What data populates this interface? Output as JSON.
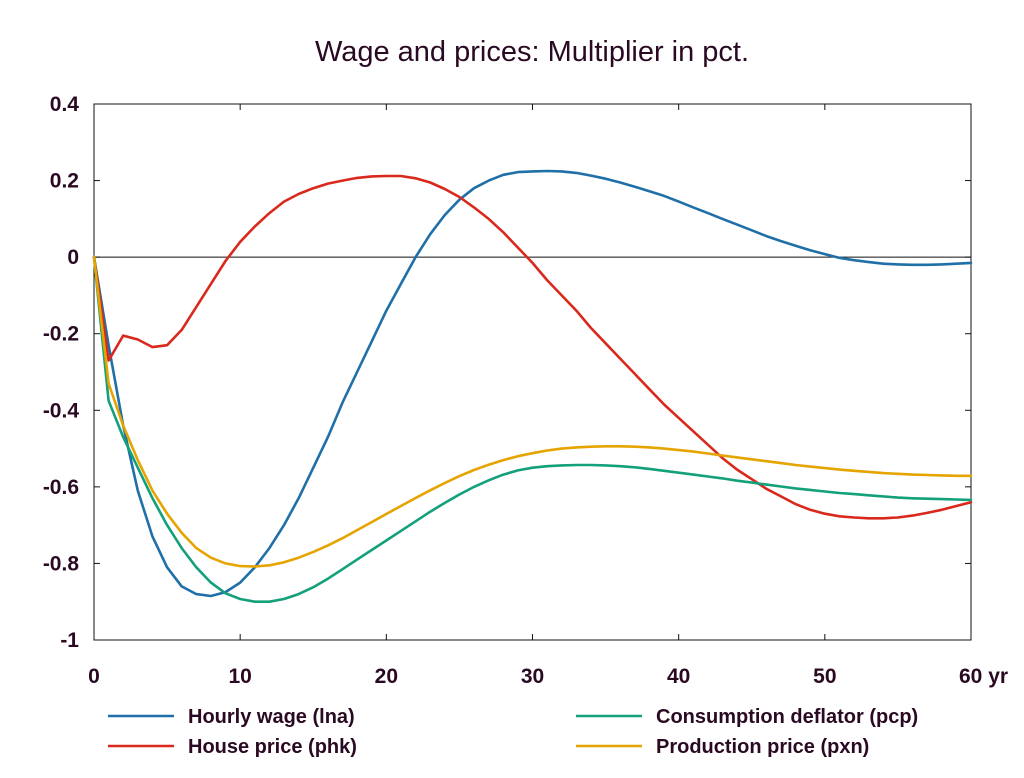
{
  "chart_data": {
    "type": "line",
    "title": "Wage and prices: Multiplier in pct.",
    "xlabel": "",
    "ylabel": "",
    "xlim": [
      0,
      60
    ],
    "ylim": [
      -1,
      0.4
    ],
    "x_ticks": [
      0,
      10,
      20,
      30,
      40,
      50,
      60
    ],
    "x_tick_labels": [
      "0",
      "10",
      "20",
      "30",
      "40",
      "50",
      "60 yr"
    ],
    "y_ticks": [
      0.4,
      0.2,
      0,
      -0.2,
      -0.4,
      -0.6,
      -0.8,
      -1
    ],
    "y_tick_labels": [
      "0.4",
      "0.2",
      "0",
      "-0.2",
      "-0.4",
      "-0.6",
      "-0.8",
      "-1"
    ],
    "grid": false,
    "zero_line": true,
    "legend_position": "bottom",
    "series": [
      {
        "name": "Hourly wage (lna)",
        "color": "#1f6fa8",
        "x": [
          0,
          1,
          2,
          3,
          4,
          5,
          6,
          7,
          8,
          9,
          10,
          11,
          12,
          13,
          14,
          15,
          16,
          17,
          18,
          19,
          20,
          21,
          22,
          23,
          24,
          25,
          26,
          27,
          28,
          29,
          30,
          31,
          32,
          33,
          34,
          35,
          36,
          37,
          38,
          39,
          40,
          41,
          42,
          43,
          44,
          45,
          46,
          47,
          48,
          49,
          50,
          51,
          52,
          53,
          54,
          55,
          56,
          57,
          58,
          59,
          60
        ],
        "values": [
          0,
          -0.23,
          -0.44,
          -0.61,
          -0.73,
          -0.81,
          -0.86,
          -0.88,
          -0.885,
          -0.875,
          -0.85,
          -0.81,
          -0.76,
          -0.7,
          -0.63,
          -0.55,
          -0.47,
          -0.38,
          -0.3,
          -0.22,
          -0.14,
          -0.07,
          0.0,
          0.06,
          0.11,
          0.15,
          0.18,
          0.2,
          0.215,
          0.222,
          0.224,
          0.225,
          0.224,
          0.22,
          0.213,
          0.205,
          0.195,
          0.184,
          0.172,
          0.16,
          0.145,
          0.13,
          0.115,
          0.1,
          0.085,
          0.07,
          0.055,
          0.042,
          0.03,
          0.018,
          0.008,
          -0.002,
          -0.008,
          -0.013,
          -0.017,
          -0.019,
          -0.02,
          -0.02,
          -0.019,
          -0.017,
          -0.015
        ]
      },
      {
        "name": "House price (phk)",
        "color": "#d9291c",
        "x": [
          0,
          1,
          2,
          3,
          4,
          5,
          6,
          7,
          8,
          9,
          10,
          11,
          12,
          13,
          14,
          15,
          16,
          17,
          18,
          19,
          20,
          21,
          22,
          23,
          24,
          25,
          26,
          27,
          28,
          29,
          30,
          31,
          32,
          33,
          34,
          35,
          36,
          37,
          38,
          39,
          40,
          41,
          42,
          43,
          44,
          45,
          46,
          47,
          48,
          49,
          50,
          51,
          52,
          53,
          54,
          55,
          56,
          57,
          58,
          59,
          60
        ],
        "values": [
          0,
          -0.27,
          -0.205,
          -0.215,
          -0.235,
          -0.23,
          -0.19,
          -0.13,
          -0.07,
          -0.01,
          0.04,
          0.08,
          0.115,
          0.145,
          0.165,
          0.18,
          0.192,
          0.2,
          0.207,
          0.211,
          0.212,
          0.212,
          0.206,
          0.195,
          0.178,
          0.157,
          0.13,
          0.1,
          0.065,
          0.025,
          -0.015,
          -0.06,
          -0.1,
          -0.14,
          -0.185,
          -0.225,
          -0.265,
          -0.305,
          -0.345,
          -0.385,
          -0.42,
          -0.455,
          -0.49,
          -0.525,
          -0.555,
          -0.58,
          -0.605,
          -0.625,
          -0.645,
          -0.66,
          -0.67,
          -0.677,
          -0.68,
          -0.682,
          -0.682,
          -0.68,
          -0.675,
          -0.668,
          -0.66,
          -0.65,
          -0.64
        ]
      },
      {
        "name": "Consumption deflator (pcp)",
        "color": "#13a07b",
        "x": [
          0,
          1,
          2,
          3,
          4,
          5,
          6,
          7,
          8,
          9,
          10,
          11,
          12,
          13,
          14,
          15,
          16,
          17,
          18,
          19,
          20,
          21,
          22,
          23,
          24,
          25,
          26,
          27,
          28,
          29,
          30,
          31,
          32,
          33,
          34,
          35,
          36,
          37,
          38,
          39,
          40,
          41,
          42,
          43,
          44,
          45,
          46,
          47,
          48,
          49,
          50,
          51,
          52,
          53,
          54,
          55,
          56,
          57,
          58,
          59,
          60
        ],
        "values": [
          0,
          -0.375,
          -0.47,
          -0.55,
          -0.63,
          -0.7,
          -0.76,
          -0.81,
          -0.85,
          -0.878,
          -0.893,
          -0.9,
          -0.9,
          -0.893,
          -0.88,
          -0.862,
          -0.84,
          -0.815,
          -0.79,
          -0.765,
          -0.74,
          -0.715,
          -0.69,
          -0.665,
          -0.642,
          -0.62,
          -0.6,
          -0.583,
          -0.568,
          -0.557,
          -0.55,
          -0.546,
          -0.544,
          -0.543,
          -0.543,
          -0.544,
          -0.546,
          -0.549,
          -0.553,
          -0.558,
          -0.563,
          -0.568,
          -0.573,
          -0.578,
          -0.584,
          -0.589,
          -0.594,
          -0.599,
          -0.604,
          -0.608,
          -0.612,
          -0.616,
          -0.619,
          -0.622,
          -0.625,
          -0.628,
          -0.63,
          -0.631,
          -0.632,
          -0.633,
          -0.634
        ]
      },
      {
        "name": "Production price (pxn)",
        "color": "#e5a400",
        "x": [
          0,
          1,
          2,
          3,
          4,
          5,
          6,
          7,
          8,
          9,
          10,
          11,
          12,
          13,
          14,
          15,
          16,
          17,
          18,
          19,
          20,
          21,
          22,
          23,
          24,
          25,
          26,
          27,
          28,
          29,
          30,
          31,
          32,
          33,
          34,
          35,
          36,
          37,
          38,
          39,
          40,
          41,
          42,
          43,
          44,
          45,
          46,
          47,
          48,
          49,
          50,
          51,
          52,
          53,
          54,
          55,
          56,
          57,
          58,
          59,
          60
        ],
        "values": [
          0,
          -0.33,
          -0.44,
          -0.53,
          -0.61,
          -0.67,
          -0.72,
          -0.76,
          -0.785,
          -0.8,
          -0.807,
          -0.808,
          -0.805,
          -0.797,
          -0.785,
          -0.77,
          -0.753,
          -0.734,
          -0.713,
          -0.692,
          -0.671,
          -0.65,
          -0.629,
          -0.609,
          -0.59,
          -0.572,
          -0.556,
          -0.542,
          -0.53,
          -0.52,
          -0.512,
          -0.505,
          -0.5,
          -0.497,
          -0.495,
          -0.494,
          -0.494,
          -0.495,
          -0.497,
          -0.5,
          -0.504,
          -0.508,
          -0.513,
          -0.518,
          -0.523,
          -0.528,
          -0.533,
          -0.538,
          -0.543,
          -0.547,
          -0.551,
          -0.555,
          -0.558,
          -0.561,
          -0.564,
          -0.566,
          -0.568,
          -0.569,
          -0.57,
          -0.571,
          -0.571
        ]
      }
    ]
  }
}
